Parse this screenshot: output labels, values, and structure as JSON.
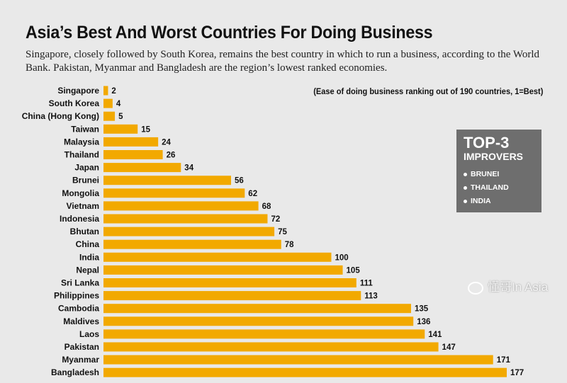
{
  "chart_data": {
    "type": "bar",
    "orientation": "horizontal",
    "title": "Asia’s Best And Worst Countries For Doing Business",
    "subtitle": "Singapore, closely followed by South Korea, remains the best country in which to run a business, according to the World Bank. Pakistan, Myanmar and Bangladesh are the region’s lowest ranked economies.",
    "note": "(Ease of doing business ranking out of 190 countries, 1=Best)",
    "categories": [
      "Singapore",
      "South Korea",
      "China (Hong Kong)",
      "Taiwan",
      "Malaysia",
      "Thailand",
      "Japan",
      "Brunei",
      "Mongolia",
      "Vietnam",
      "Indonesia",
      "Bhutan",
      "China",
      "India",
      "Nepal",
      "Sri Lanka",
      "Philippines",
      "Cambodia",
      "Maldives",
      "Laos",
      "Pakistan",
      "Myanmar",
      "Bangladesh"
    ],
    "values": [
      2,
      4,
      5,
      15,
      24,
      26,
      34,
      56,
      62,
      68,
      72,
      75,
      78,
      100,
      105,
      111,
      113,
      135,
      136,
      141,
      147,
      171,
      177
    ],
    "xlim": [
      0,
      190
    ],
    "grid": false,
    "bar_color": "#f2a900"
  },
  "improvers": {
    "title": "TOP-3",
    "subtitle": "IMPROVERS",
    "items": [
      "BRUNEI",
      "THAILAND",
      "INDIA"
    ]
  },
  "watermark": "懂哥In Asia"
}
